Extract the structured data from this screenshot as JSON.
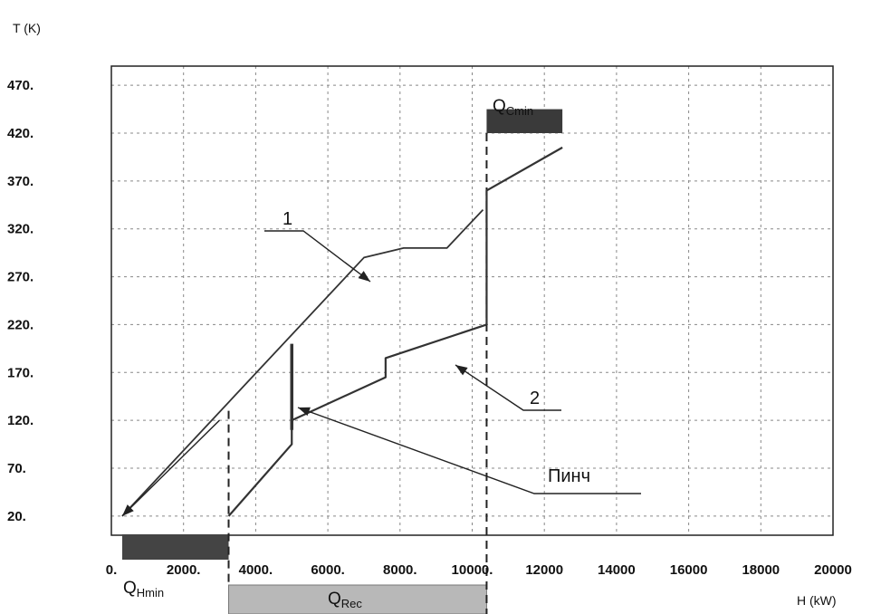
{
  "chart_data": {
    "type": "line",
    "title": "",
    "ylabel": "T (K)",
    "xlabel": "H (kW)",
    "xlim": [
      0,
      20000
    ],
    "ylim": [
      0,
      490
    ],
    "x_ticks": [
      0,
      2000,
      4000,
      6000,
      8000,
      10000,
      12000,
      14000,
      16000,
      18000,
      20000
    ],
    "x_tick_labels": [
      "0.",
      "2000.",
      "4000.",
      "6000.",
      "8000.",
      "10000.",
      "12000",
      "14000",
      "16000",
      "18000",
      "20000"
    ],
    "y_ticks": [
      20,
      70,
      120,
      170,
      220,
      270,
      320,
      370,
      420,
      470
    ],
    "y_tick_labels": [
      "20.",
      "70.",
      "120.",
      "170.",
      "220.",
      "270.",
      "320.",
      "370.",
      "420.",
      "470."
    ],
    "grid": true,
    "series": [
      {
        "name": "1",
        "points": [
          [
            300,
            20
          ],
          [
            7000,
            290
          ],
          [
            8100,
            300
          ],
          [
            9300,
            300
          ],
          [
            10300,
            340
          ]
        ]
      },
      {
        "name": "2",
        "points": [
          [
            3250,
            20
          ],
          [
            5000,
            95
          ],
          [
            5000,
            120
          ],
          [
            7600,
            165
          ],
          [
            7600,
            185
          ],
          [
            10400,
            220
          ],
          [
            10400,
            360
          ],
          [
            12500,
            405
          ]
        ]
      },
      {
        "name": "Пинч",
        "points": [
          [
            5000,
            200
          ],
          [
            5000,
            110
          ]
        ]
      }
    ],
    "annotations": {
      "curve1": "1",
      "curve2": "2",
      "pinch": "Пинч",
      "q_hmin_base": "Q",
      "q_hmin_sub": "Hmin",
      "q_rec_base": "Q",
      "q_rec_sub": "Rec",
      "q_cmin_base": "Q",
      "q_cmin_sub": "Cmin"
    },
    "bars": {
      "q_hmin": {
        "x": [
          300,
          3250
        ]
      },
      "q_rec": {
        "x": [
          3250,
          10400
        ]
      },
      "q_cmin": {
        "x": [
          10400,
          12500
        ],
        "y": [
          420,
          445
        ]
      }
    },
    "colors": {
      "curve": "#333333",
      "grid": "#888888",
      "q_hmin_fill": "#444444",
      "q_rec_fill": "#b8b8b8",
      "q_cmin_fill": "#3a3a3a"
    }
  }
}
